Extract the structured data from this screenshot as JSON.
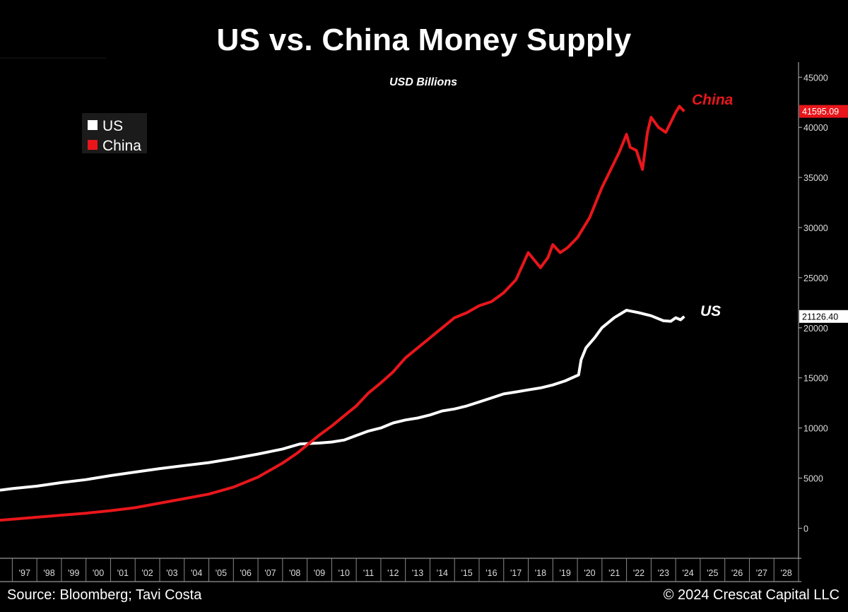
{
  "title": "US vs. China Money Supply",
  "footer": {
    "source": "Source: Bloomberg; Tavi Costa",
    "copyright": "© 2024 Crescat Capital LLC"
  },
  "colors": {
    "background": "#000000",
    "us": "#ffffff",
    "china": "#e8161b"
  },
  "chart_data": {
    "type": "line",
    "subtitle": "USD Billions",
    "x_unit": "year",
    "xlim": [
      1996.5,
      2029
    ],
    "ylim": [
      -3000,
      46500
    ],
    "y_ticks": [
      0,
      5000,
      10000,
      15000,
      20000,
      25000,
      30000,
      35000,
      40000,
      45000
    ],
    "x_tick_labels": [
      "'97",
      "'98",
      "'99",
      "'00",
      "'01",
      "'02",
      "'03",
      "'04",
      "'05",
      "'06",
      "'07",
      "'08",
      "'09",
      "'10",
      "'11",
      "'12",
      "'13",
      "'14",
      "'15",
      "'16",
      "'17",
      "'18",
      "'19",
      "'20",
      "'21",
      "'22",
      "'23",
      "'24",
      "'25",
      "'26",
      "'27",
      "'28"
    ],
    "legend": {
      "placement": "top-left",
      "entries": [
        "US",
        "China"
      ]
    },
    "grid": false,
    "series": [
      {
        "name": "US",
        "color": "#ffffff",
        "last_value": "21126.40",
        "label": "US",
        "points": [
          [
            1996.5,
            3800
          ],
          [
            1997,
            3950
          ],
          [
            1998,
            4200
          ],
          [
            1999,
            4550
          ],
          [
            2000,
            4850
          ],
          [
            2001,
            5250
          ],
          [
            2002,
            5600
          ],
          [
            2003,
            5950
          ],
          [
            2004,
            6250
          ],
          [
            2005,
            6550
          ],
          [
            2006,
            6950
          ],
          [
            2007,
            7400
          ],
          [
            2008,
            7900
          ],
          [
            2008.7,
            8400
          ],
          [
            2009.5,
            8500
          ],
          [
            2010,
            8600
          ],
          [
            2010.5,
            8800
          ],
          [
            2011,
            9250
          ],
          [
            2011.5,
            9700
          ],
          [
            2012,
            10000
          ],
          [
            2012.5,
            10500
          ],
          [
            2013,
            10800
          ],
          [
            2013.5,
            11000
          ],
          [
            2014,
            11300
          ],
          [
            2014.5,
            11700
          ],
          [
            2015,
            11900
          ],
          [
            2015.5,
            12200
          ],
          [
            2016,
            12600
          ],
          [
            2016.5,
            13000
          ],
          [
            2017,
            13400
          ],
          [
            2017.5,
            13600
          ],
          [
            2018,
            13800
          ],
          [
            2018.5,
            14000
          ],
          [
            2019,
            14300
          ],
          [
            2019.5,
            14700
          ],
          [
            2020.05,
            15300
          ],
          [
            2020.15,
            16800
          ],
          [
            2020.35,
            18000
          ],
          [
            2020.7,
            19000
          ],
          [
            2021,
            20000
          ],
          [
            2021.5,
            21000
          ],
          [
            2022,
            21750
          ],
          [
            2022.5,
            21500
          ],
          [
            2023,
            21200
          ],
          [
            2023.5,
            20700
          ],
          [
            2023.8,
            20650
          ],
          [
            2024,
            21000
          ],
          [
            2024.2,
            20800
          ],
          [
            2024.35,
            21126
          ]
        ]
      },
      {
        "name": "China",
        "color": "#e8161b",
        "last_value": "41595.09",
        "label": "China",
        "points": [
          [
            1996.5,
            800
          ],
          [
            1997,
            900
          ],
          [
            1998,
            1100
          ],
          [
            1999,
            1300
          ],
          [
            2000,
            1500
          ],
          [
            2001,
            1750
          ],
          [
            2002,
            2050
          ],
          [
            2003,
            2500
          ],
          [
            2004,
            2950
          ],
          [
            2005,
            3400
          ],
          [
            2006,
            4100
          ],
          [
            2007,
            5100
          ],
          [
            2008,
            6500
          ],
          [
            2008.6,
            7500
          ],
          [
            2009,
            8300
          ],
          [
            2009.5,
            9300
          ],
          [
            2010,
            10200
          ],
          [
            2010.5,
            11200
          ],
          [
            2011,
            12200
          ],
          [
            2011.5,
            13500
          ],
          [
            2012,
            14500
          ],
          [
            2012.5,
            15600
          ],
          [
            2013,
            17000
          ],
          [
            2013.5,
            18000
          ],
          [
            2014,
            19000
          ],
          [
            2014.5,
            20000
          ],
          [
            2015,
            21000
          ],
          [
            2015.5,
            21500
          ],
          [
            2016,
            22200
          ],
          [
            2016.5,
            22600
          ],
          [
            2017,
            23500
          ],
          [
            2017.5,
            24800
          ],
          [
            2018,
            27500
          ],
          [
            2018.5,
            26000
          ],
          [
            2018.8,
            27000
          ],
          [
            2019,
            28300
          ],
          [
            2019.3,
            27500
          ],
          [
            2019.6,
            28000
          ],
          [
            2020,
            29000
          ],
          [
            2020.5,
            31000
          ],
          [
            2021,
            34000
          ],
          [
            2021.3,
            35500
          ],
          [
            2021.7,
            37500
          ],
          [
            2022,
            39300
          ],
          [
            2022.15,
            38000
          ],
          [
            2022.4,
            37700
          ],
          [
            2022.65,
            35800
          ],
          [
            2022.85,
            39500
          ],
          [
            2023,
            41000
          ],
          [
            2023.3,
            40000
          ],
          [
            2023.6,
            39500
          ],
          [
            2023.8,
            40500
          ],
          [
            2024,
            41500
          ],
          [
            2024.15,
            42100
          ],
          [
            2024.35,
            41595
          ]
        ]
      }
    ]
  }
}
